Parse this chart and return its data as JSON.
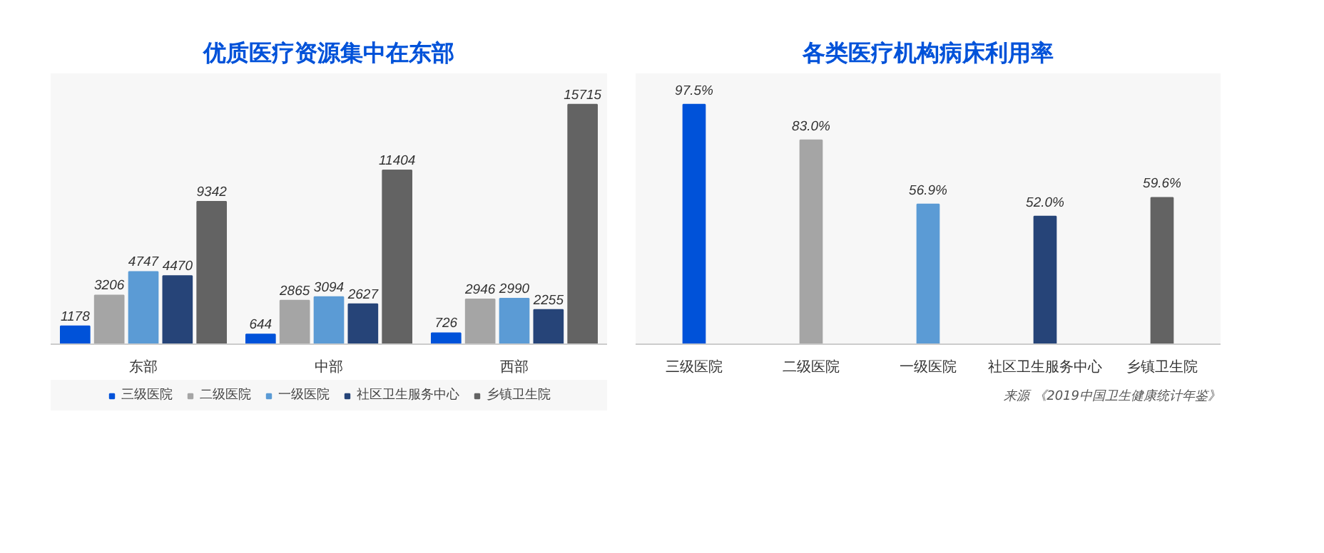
{
  "chart_data": [
    {
      "type": "bar",
      "title": "优质医疗资源集中在东部",
      "categories": [
        "东部",
        "中部",
        "西部"
      ],
      "data_labels": true,
      "legend": "bottom",
      "grid": false,
      "series": [
        {
          "name": "三级医院",
          "color": "#0052d9",
          "values": [
            1178,
            644,
            726
          ]
        },
        {
          "name": "二级医院",
          "color": "#a5a5a5",
          "values": [
            3206,
            2865,
            2946
          ]
        },
        {
          "name": "一级医院",
          "color": "#5b9bd5",
          "values": [
            4747,
            3094,
            2990
          ]
        },
        {
          "name": "社区卫生服务中心",
          "color": "#264478",
          "values": [
            4470,
            2627,
            2255
          ]
        },
        {
          "name": "乡镇卫生院",
          "color": "#636363",
          "values": [
            9342,
            11404,
            15715
          ]
        }
      ]
    },
    {
      "type": "bar",
      "title": "各类医疗机构病床利用率",
      "categories": [
        "三级医院",
        "二级医院",
        "一级医院",
        "社区卫生服务中心",
        "乡镇卫生院"
      ],
      "grid": false,
      "values": [
        97.5,
        83.0,
        56.9,
        52.0,
        59.6
      ],
      "value_labels": [
        "97.5%",
        "83.0%",
        "56.9%",
        "52.0%",
        "59.6%"
      ],
      "colors": [
        "#0052d9",
        "#a5a5a5",
        "#5b9bd5",
        "#264478",
        "#636363"
      ],
      "annotations": [
        "来源 《2019中国卫生健康统计年鉴》"
      ]
    }
  ]
}
